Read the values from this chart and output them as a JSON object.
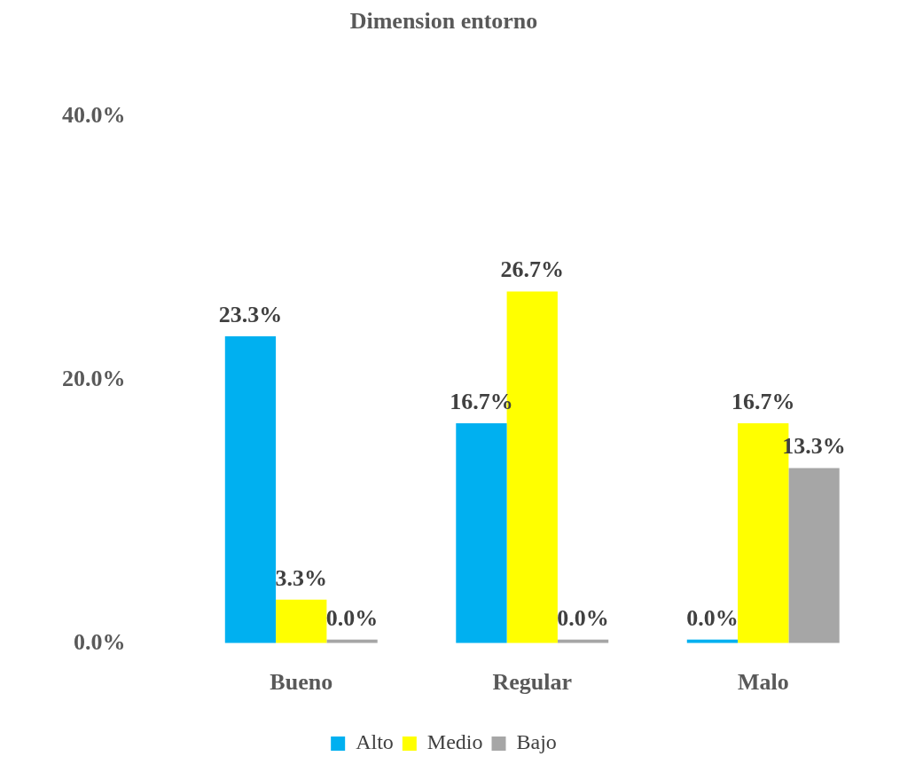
{
  "chart_data": {
    "type": "bar",
    "title": "Dimension entorno",
    "categories": [
      "Bueno",
      "Regular",
      "Malo"
    ],
    "series": [
      {
        "name": "Alto",
        "color": "#00b0f0",
        "values": [
          23.3,
          16.7,
          0.0
        ],
        "value_labels": [
          "23.3%",
          "16.7%",
          "0.0%"
        ]
      },
      {
        "name": "Medio",
        "color": "#ffff00",
        "values": [
          3.3,
          26.7,
          16.7
        ],
        "value_labels": [
          "3.3%",
          "26.7%",
          "16.7%"
        ]
      },
      {
        "name": "Bajo",
        "color": "#a6a6a6",
        "values": [
          0.0,
          0.0,
          13.3
        ],
        "value_labels": [
          "0.0%",
          "0.0%",
          "13.3%"
        ]
      }
    ],
    "ylim": [
      0,
      40
    ],
    "yticks": [
      {
        "value": 0,
        "label": "0.0%"
      },
      {
        "value": 20,
        "label": "20.0%"
      },
      {
        "value": 40,
        "label": "40.0%"
      }
    ],
    "grid": false,
    "legend": "bottom"
  }
}
